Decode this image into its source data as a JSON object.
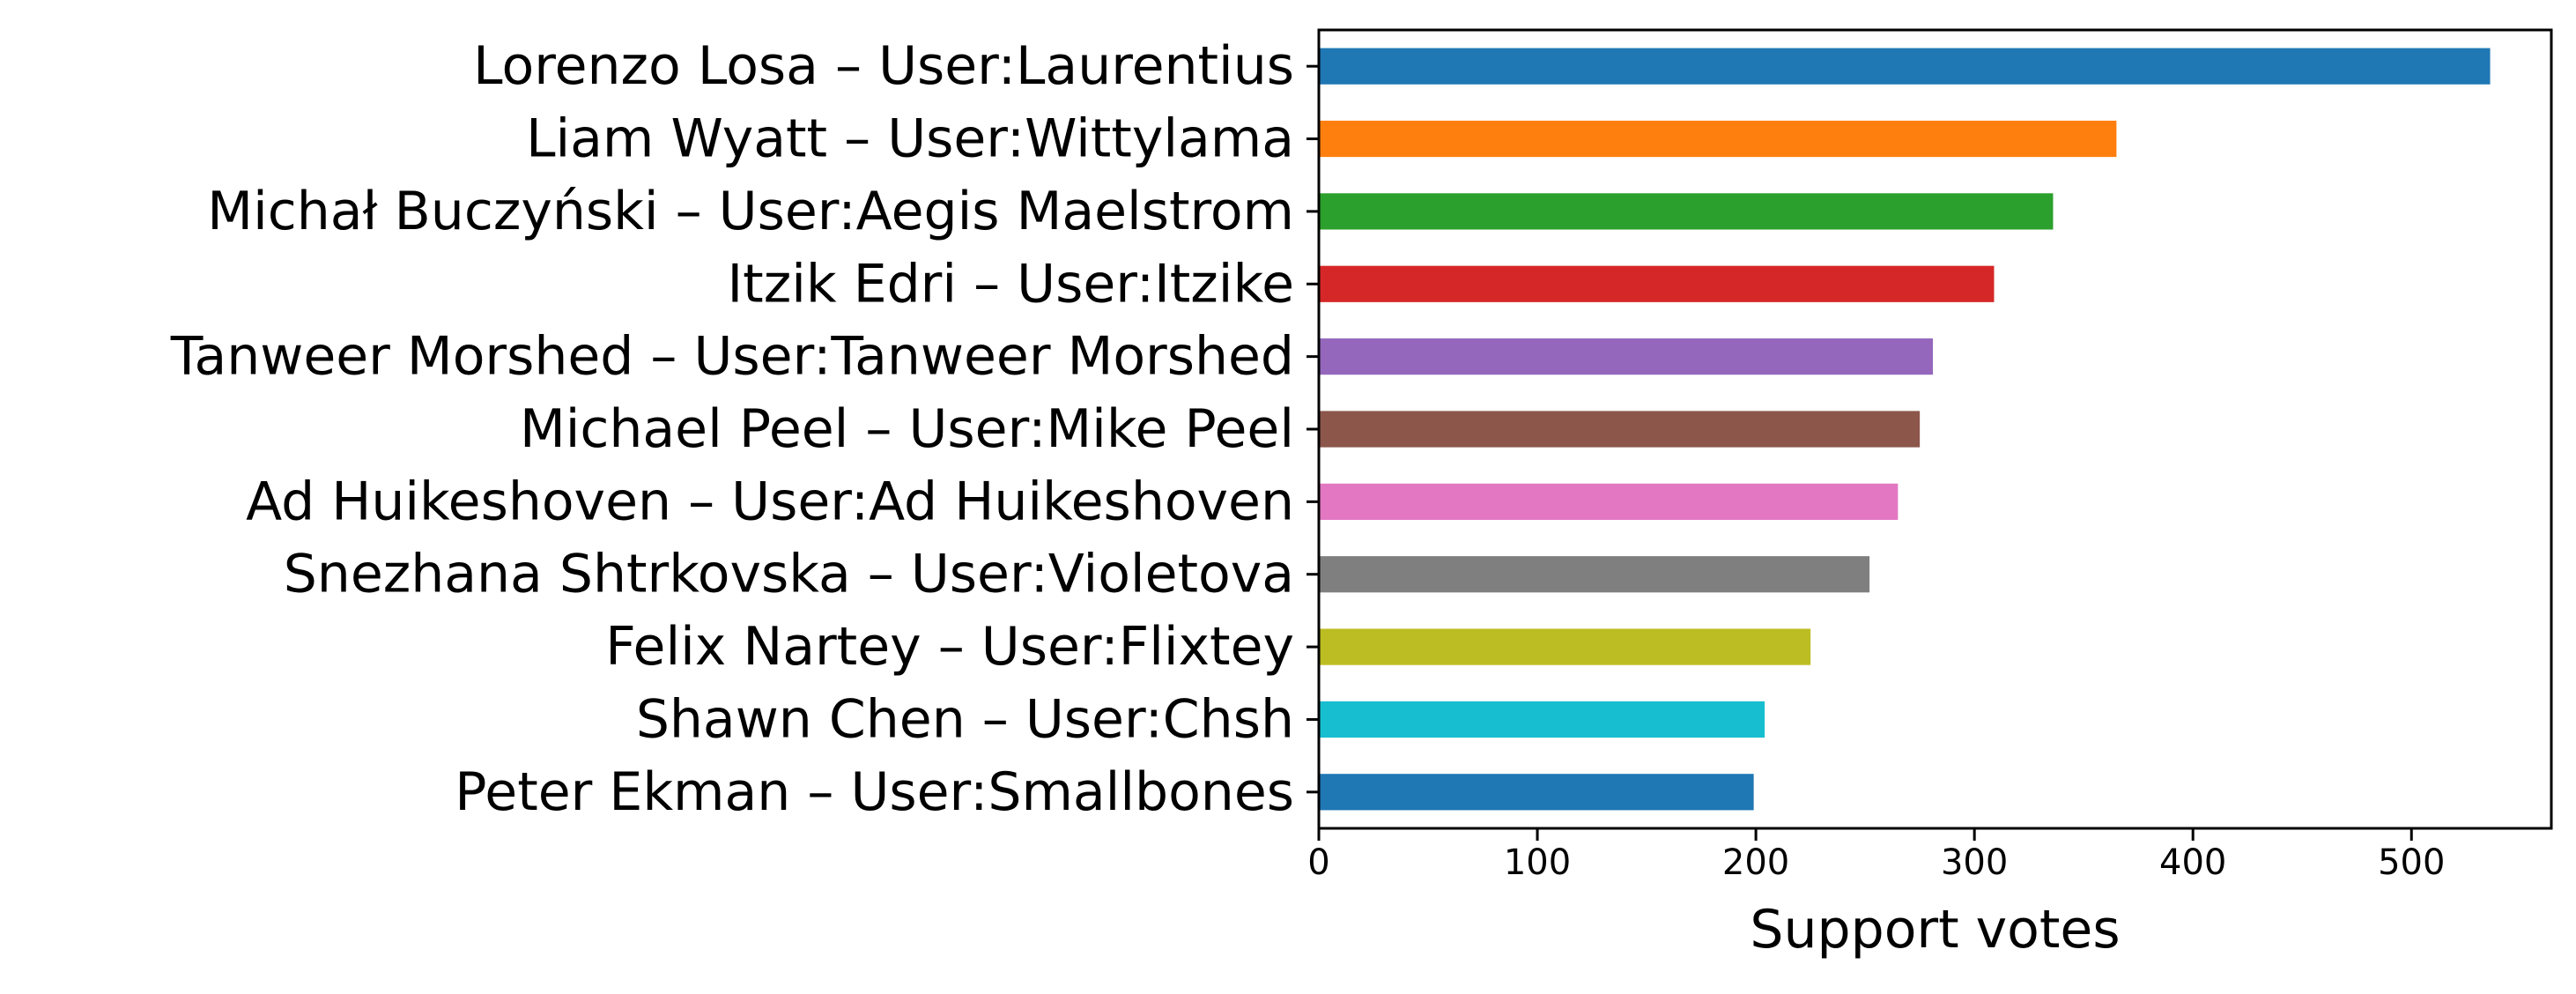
{
  "chart_data": {
    "type": "bar",
    "orientation": "horizontal",
    "categories": [
      "Lorenzo Losa – User:Laurentius",
      "Liam Wyatt – User:Wittylama",
      "Michał Buczyński – User:Aegis Maelstrom",
      "Itzik Edri – User:Itzike",
      "Tanweer Morshed – User:Tanweer Morshed",
      "Michael Peel – User:Mike Peel",
      "Ad Huikeshoven – User:Ad Huikeshoven",
      "Snezhana Shtrkovska – User:Violetova",
      "Felix Nartey – User:Flixtey",
      "Shawn Chen – User:Chsh",
      "Peter Ekman – User:Smallbones"
    ],
    "values": [
      536,
      365,
      336,
      309,
      281,
      275,
      265,
      252,
      225,
      204,
      199
    ],
    "colors": [
      "#1f77b4",
      "#ff7f0e",
      "#2ca02c",
      "#d62728",
      "#9467bd",
      "#8c564b",
      "#e377c2",
      "#7f7f7f",
      "#bcbd22",
      "#17becf",
      "#1f77b4"
    ],
    "title": "",
    "xlabel": "Support votes",
    "ylabel": "",
    "xlim": [
      0,
      564
    ],
    "xticks": [
      0,
      100,
      200,
      300,
      400,
      500
    ],
    "xtick_labels": [
      "0",
      "100",
      "200",
      "300",
      "400",
      "500"
    ],
    "grid": false,
    "legend": "none"
  }
}
